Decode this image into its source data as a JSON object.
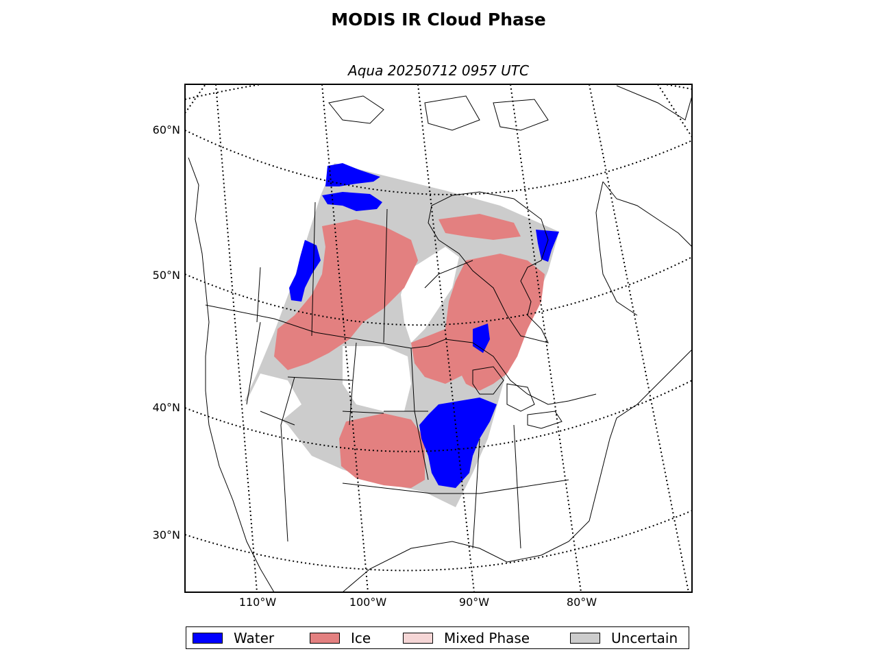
{
  "title": "MODIS IR Cloud Phase",
  "subtitle": "Aqua 20250712 0957 UTC",
  "lat_labels": [
    "60°N",
    "50°N",
    "40°N",
    "30°N"
  ],
  "lon_labels": [
    "110°W",
    "100°W",
    "90°W",
    "80°W"
  ],
  "legend": [
    {
      "label": "Water",
      "color": "#0000ff"
    },
    {
      "label": "Ice",
      "color": "#e38080"
    },
    {
      "label": "Mixed Phase",
      "color": "#f5d6d6"
    },
    {
      "label": "Uncertain",
      "color": "#cccccc"
    }
  ],
  "colors": {
    "water": "#0000ff",
    "ice": "#e38080",
    "mixed": "#f5d6d6",
    "uncertain": "#cccccc"
  }
}
